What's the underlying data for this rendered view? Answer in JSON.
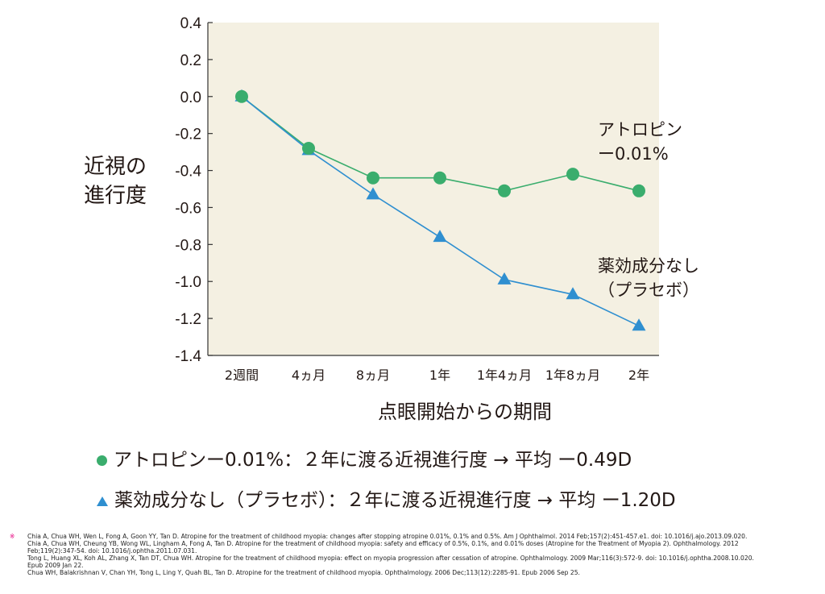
{
  "chart_data": {
    "type": "line",
    "title": "",
    "xlabel": "点眼開始からの期間",
    "ylabel": "近視の進行度",
    "categories": [
      "2週間",
      "4ヵ月",
      "8ヵ月",
      "1年",
      "1年4ヵ月",
      "1年8ヵ月",
      "2年"
    ],
    "ylim": [
      -1.4,
      0.4
    ],
    "yticks": [
      "0.4",
      "0.2",
      "0.0",
      "-0.2",
      "-0.4",
      "-0.6",
      "-0.8",
      "-1.0",
      "-1.2",
      "-1.4"
    ],
    "series": [
      {
        "name": "アトロピンー0.01%",
        "label_line1": "アトロピン",
        "label_line2": "ー0.01%",
        "marker": "circle",
        "color": "#3aad6d",
        "values": [
          0.0,
          -0.28,
          -0.44,
          -0.44,
          -0.51,
          -0.42,
          -0.51
        ]
      },
      {
        "name": "薬効成分なし（プラセボ）",
        "label_line1": "薬効成分なし",
        "label_line2": "（プラセボ）",
        "marker": "triangle",
        "color": "#2f8fd0",
        "values": [
          0.0,
          -0.29,
          -0.53,
          -0.76,
          -0.99,
          -1.07,
          -1.24
        ]
      }
    ]
  },
  "ylabel_line1": "近視の",
  "ylabel_line2": "進行度",
  "summary": {
    "atropine": "アトロピンー0.01%：２年に渡る近視進行度 → 平均 ー0.49D",
    "placebo": "薬効成分なし（プラセボ）：２年に渡る近視進行度 → 平均 ー1.20D"
  },
  "references": {
    "mark": "※",
    "lines": [
      "Chia A, Chua WH, Wen L, Fong A, Goon YY, Tan D. Atropine for the treatment of childhood myopia: changes after stopping atropine 0.01%, 0.1% and 0.5%. Am J Ophthalmol. 2014 Feb;157(2):451-457.e1. doi: 10.1016/j.ajo.2013.09.020.",
      "Chia A, Chua WH, Cheung YB, Wong WL, Lingham A, Fong A, Tan D. Atropine for the treatment of childhood myopia: safety and efficacy of 0.5%, 0.1%, and 0.01% doses (Atropine for the Treatment of Myopia 2). Ophthalmology. 2012",
      "Feb;119(2):347-54. doi: 10.1016/j.ophtha.2011.07.031.",
      "Tong L, Huang XL, Koh AL, Zhang X, Tan DT, Chua WH. Atropine for the treatment of childhood myopia: effect on myopia progression after cessation of atropine. Ophthalmology. 2009 Mar;116(3):572-9. doi: 10.1016/j.ophtha.2008.10.020.",
      "Epub 2009 Jan 22.",
      "Chua WH, Balakrishnan V, Chan YH, Tong L, Ling Y, Quah BL, Tan D. Atropine for the treatment of childhood myopia. Ophthalmology. 2006 Dec;113(12):2285-91. Epub 2006 Sep 25."
    ]
  }
}
